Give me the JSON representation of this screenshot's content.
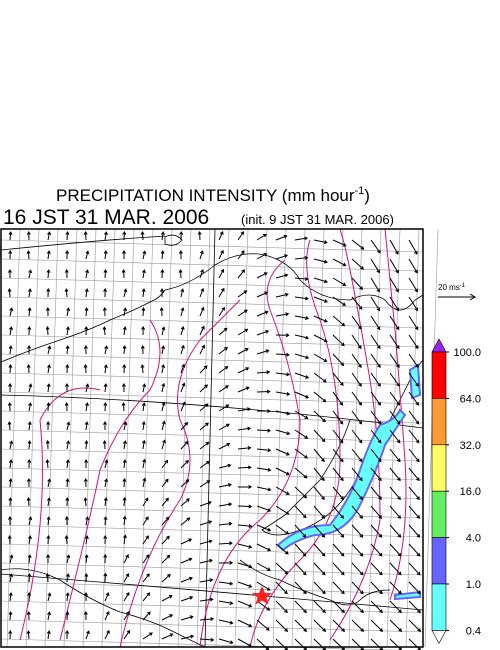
{
  "title": {
    "text": "PRECIPITATION INTENSITY (mm hour",
    "superscript": "-1",
    "close": ")"
  },
  "valid_time": "16 JST 31 MAR. 2006",
  "init_time": "(init. 9 JST 31 MAR. 2006)",
  "reference_vector": {
    "label": "20 ms",
    "superscript": "-1"
  },
  "colorbar": {
    "ticks": [
      {
        "value": 100,
        "label": "100.0"
      },
      {
        "value": 64,
        "label": "64.0"
      },
      {
        "value": 32,
        "label": "32.0"
      },
      {
        "value": 16,
        "label": "16.0"
      },
      {
        "value": 4,
        "label": "4.0"
      },
      {
        "value": 1,
        "label": "1.0"
      },
      {
        "value": 0.4,
        "label": "0.4"
      }
    ],
    "colors": [
      "#a020f0",
      "#ff0000",
      "#ff9933",
      "#ffff66",
      "#66ee66",
      "#6666ff",
      "#66ffff",
      "#ffffff"
    ]
  }
}
